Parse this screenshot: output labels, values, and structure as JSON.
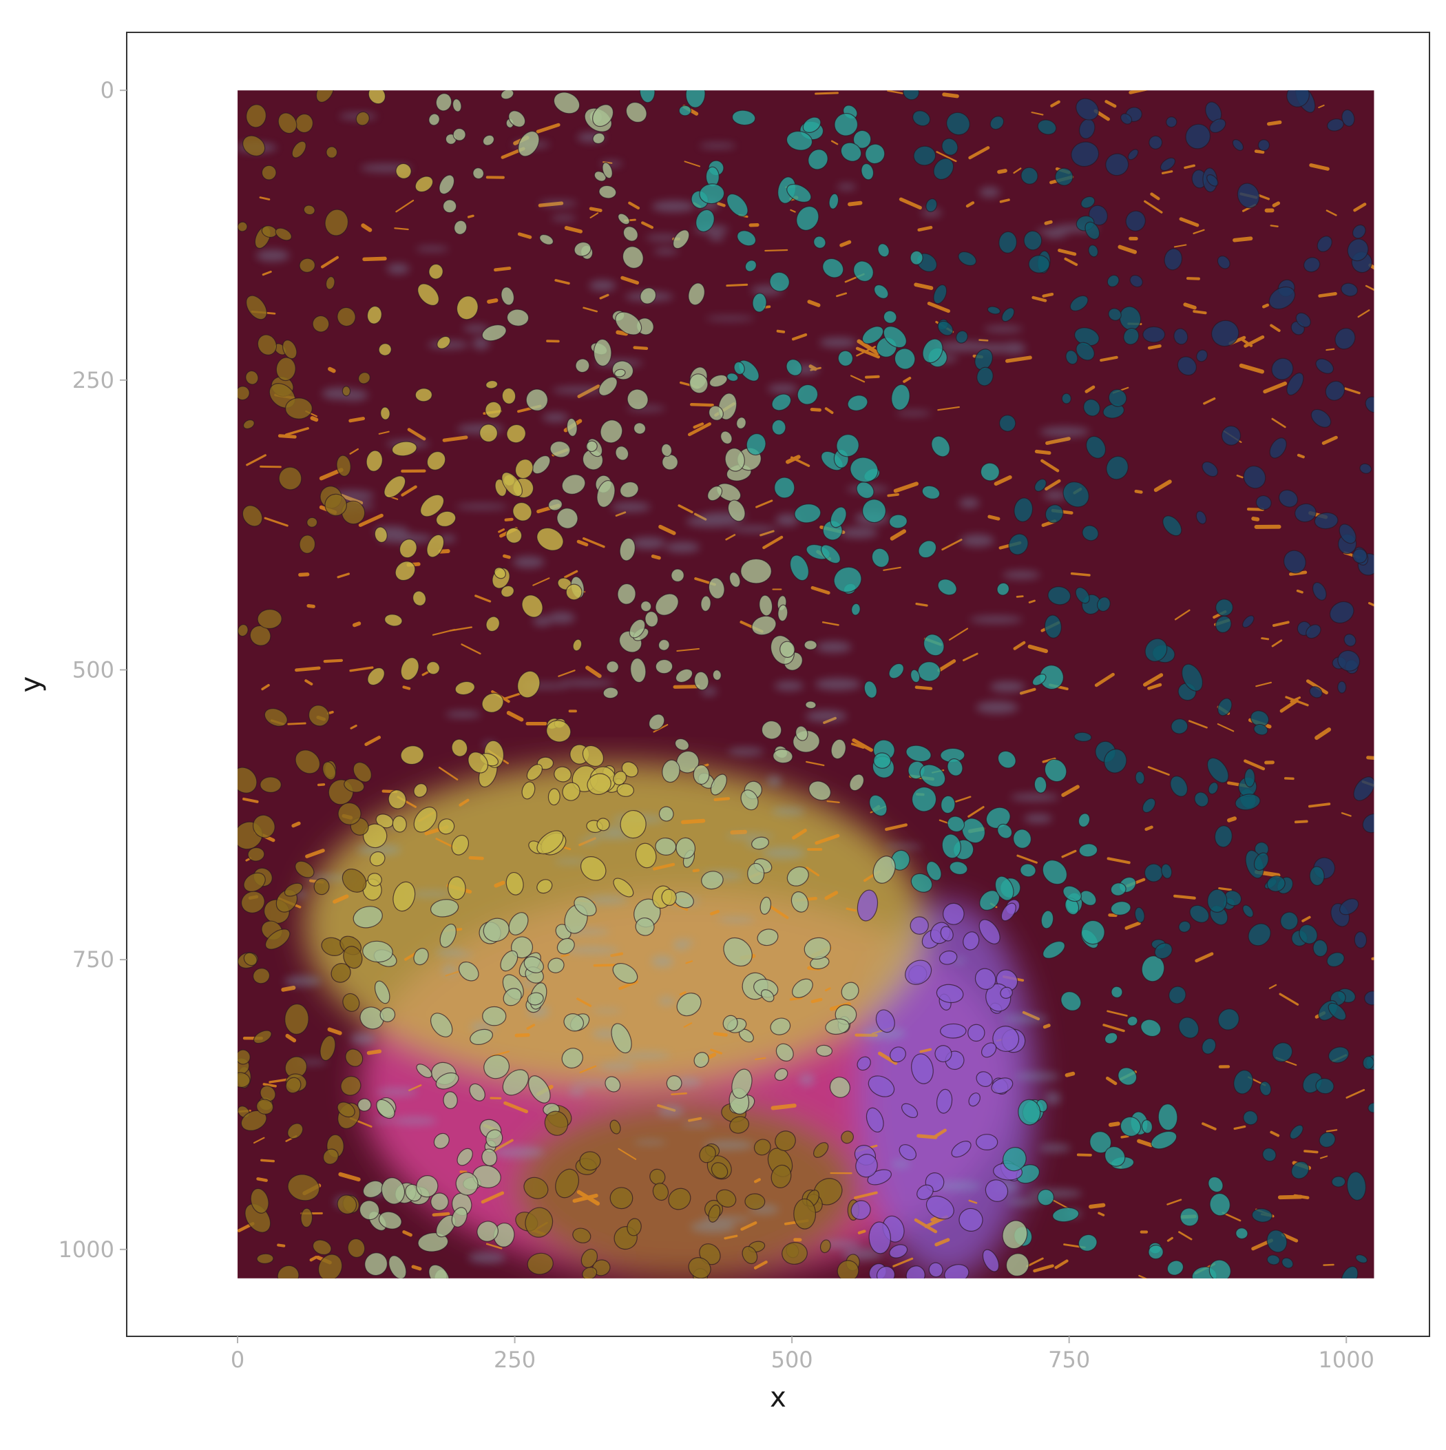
{
  "chart_data": {
    "type": "heatmap",
    "description_type": "raster-image-with-segmentation",
    "xlabel": "x",
    "ylabel": "y",
    "xlim": [
      -100,
      1075
    ],
    "ylim": [
      1075,
      -50
    ],
    "y_reversed": true,
    "image_extent": {
      "x": [
        0,
        1025
      ],
      "y": [
        0,
        1025
      ]
    },
    "x_ticks": [
      0,
      250,
      500,
      750,
      1000
    ],
    "x_tick_labels": [
      "0",
      "250",
      "500",
      "750",
      "1000"
    ],
    "y_ticks": [
      0,
      250,
      500,
      750,
      1000
    ],
    "y_tick_labels": [
      "0",
      "250",
      "500",
      "750",
      "1000"
    ],
    "grid": false,
    "colors": {
      "background_tissue": "#561028",
      "orange_signal": "#e8901e",
      "light_blue_signal": "#7fa9c8",
      "yellow_cells": "#c8b84a",
      "pale_cells": "#a8bf92",
      "teal_cells": "#2aa59b",
      "dark_teal_cells": "#0f5b6e",
      "navy_cells": "#1d3a66",
      "pink_region": "#e0469e",
      "olive_region": "#8a6a1e",
      "mint_cells": "#8fe0c0",
      "purple_region": "#8a5ccd",
      "cell_outline": "#2b1522"
    },
    "regions": [
      {
        "name": "dense-cluster-pink",
        "color": "#e0469e",
        "x": [
          110,
          700
        ],
        "y": [
          690,
          1025
        ]
      },
      {
        "name": "dense-cluster-olive",
        "color": "#8a6a1e",
        "x": [
          250,
          560
        ],
        "y": [
          870,
          1025
        ]
      },
      {
        "name": "dense-cluster-purple",
        "color": "#8a5ccd",
        "x": [
          560,
          720
        ],
        "y": [
          700,
          1025
        ]
      },
      {
        "name": "dense-cluster-yellow",
        "color": "#c8b84a",
        "x": [
          60,
          620
        ],
        "y": [
          580,
          860
        ]
      }
    ]
  }
}
